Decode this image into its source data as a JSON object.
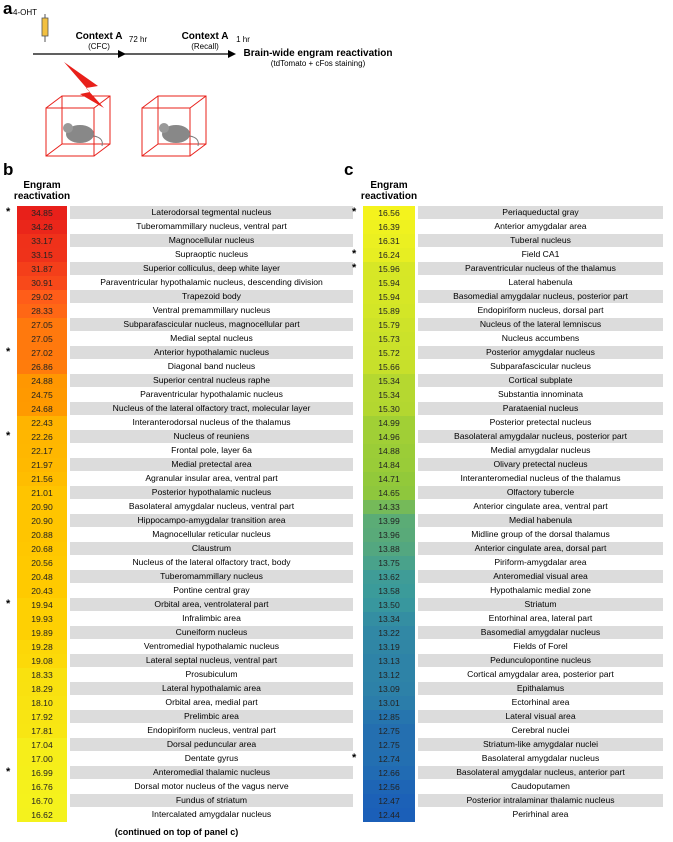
{
  "panel_a": {
    "label": "a",
    "drug": "4-OHT",
    "step1_title": "Context A",
    "step1_sub": "(CFC)",
    "interval1": "72 hr",
    "step2_title": "Context A",
    "step2_sub": "(Recall)",
    "interval2": "1 hr",
    "result_title": "Brain-wide engram reactivation",
    "result_sub": "(tdTomato + cFos staining)"
  },
  "panel_b": {
    "label": "b",
    "column_header": "Engram reactivation",
    "footnote": "(continued on top of panel c)",
    "rows": [
      {
        "star": "*",
        "value": "34.85",
        "name": "Laterodorsal tegmental nucleus"
      },
      {
        "value": "34.26",
        "name": "Tuberomammillary nucleus, ventral part"
      },
      {
        "value": "33.17",
        "name": "Magnocellular nucleus"
      },
      {
        "value": "33.15",
        "name": "Supraoptic nucleus"
      },
      {
        "value": "31.87",
        "name": "Superior colliculus, deep white layer"
      },
      {
        "value": "30.91",
        "name": "Paraventricular hypothalamic nucleus, descending division"
      },
      {
        "value": "29.02",
        "name": "Trapezoid body"
      },
      {
        "value": "28.33",
        "name": "Ventral premammillary nucleus"
      },
      {
        "value": "27.05",
        "name": "Subparafascicular nucleus, magnocellular part"
      },
      {
        "value": "27.05",
        "name": "Medial septal nucleus"
      },
      {
        "star": "*",
        "value": "27.02",
        "name": "Anterior hypothalamic nucleus"
      },
      {
        "value": "26.86",
        "name": "Diagonal band nucleus"
      },
      {
        "value": "24.88",
        "name": "Superior central nucleus raphe"
      },
      {
        "value": "24.75",
        "name": "Paraventricular hypothalamic nucleus"
      },
      {
        "value": "24.68",
        "name": "Nucleus of the lateral olfactory tract, molecular layer"
      },
      {
        "value": "22.43",
        "name": "Interanterodorsal nucleus of the thalamus"
      },
      {
        "star": "*",
        "value": "22.26",
        "name": "Nucleus of reuniens"
      },
      {
        "value": "22.17",
        "name": "Frontal pole, layer 6a"
      },
      {
        "value": "21.97",
        "name": "Medial pretectal area"
      },
      {
        "value": "21.56",
        "name": "Agranular insular area, ventral part"
      },
      {
        "value": "21.01",
        "name": "Posterior hypothalamic nucleus"
      },
      {
        "value": "20.90",
        "name": "Basolateral amygdalar nucleus, ventral part"
      },
      {
        "value": "20.90",
        "name": "Hippocampo-amygdalar transition area"
      },
      {
        "value": "20.88",
        "name": "Magnocellular reticular nucleus"
      },
      {
        "value": "20.68",
        "name": "Claustrum"
      },
      {
        "value": "20.56",
        "name": "Nucleus of the lateral olfactory tract, body"
      },
      {
        "value": "20.48",
        "name": "Tuberomammillary nucleus"
      },
      {
        "value": "20.43",
        "name": "Pontine central gray"
      },
      {
        "star": "*",
        "value": "19.94",
        "name": "Orbital area, ventrolateral part"
      },
      {
        "value": "19.93",
        "name": "Infralimbic area"
      },
      {
        "value": "19.89",
        "name": "Cuneiform nucleus"
      },
      {
        "value": "19.28",
        "name": "Ventromedial hypothalamic nucleus"
      },
      {
        "value": "19.08",
        "name": "Lateral septal nucleus, ventral part"
      },
      {
        "value": "18.33",
        "name": "Prosubiculum"
      },
      {
        "value": "18.29",
        "name": "Lateral hypothalamic area"
      },
      {
        "value": "18.10",
        "name": "Orbital area, medial part"
      },
      {
        "value": "17.92",
        "name": "Prelimbic area"
      },
      {
        "value": "17.81",
        "name": "Endopiriform nucleus, ventral part"
      },
      {
        "value": "17.04",
        "name": "Dorsal peduncular area"
      },
      {
        "value": "17.00",
        "name": "Dentate gyrus"
      },
      {
        "star": "*",
        "value": "16.99",
        "name": "Anteromedial thalamic nucleus"
      },
      {
        "value": "16.76",
        "name": "Dorsal motor nucleus of the vagus nerve"
      },
      {
        "value": "16.70",
        "name": "Fundus of striatum"
      },
      {
        "value": "16.62",
        "name": "Intercalated amygdalar nucleus"
      }
    ]
  },
  "panel_c": {
    "label": "c",
    "column_header": "Engram reactivation",
    "rows": [
      {
        "star": "*",
        "value": "16.56",
        "name": "Periaqueductal gray"
      },
      {
        "value": "16.39",
        "name": "Anterior amygdalar area"
      },
      {
        "value": "16.31",
        "name": "Tuberal nucleus"
      },
      {
        "star": "*",
        "value": "16.24",
        "name": "Field CA1"
      },
      {
        "star": "*",
        "value": "15.96",
        "name": "Paraventricular nucleus of the thalamus"
      },
      {
        "value": "15.94",
        "name": "Lateral habenula"
      },
      {
        "value": "15.94",
        "name": "Basomedial amygdalar nucleus, posterior part"
      },
      {
        "value": "15.89",
        "name": "Endopiriform nucleus, dorsal part"
      },
      {
        "value": "15.79",
        "name": "Nucleus of the lateral lemniscus"
      },
      {
        "value": "15.73",
        "name": "Nucleus accumbens"
      },
      {
        "value": "15.72",
        "name": "Posterior amygdalar nucleus"
      },
      {
        "value": "15.66",
        "name": "Subparafascicular nucleus"
      },
      {
        "value": "15.34",
        "name": "Cortical subplate"
      },
      {
        "value": "15.34",
        "name": "Substantia innominata"
      },
      {
        "value": "15.30",
        "name": "Parataenial nucleus"
      },
      {
        "value": "14.99",
        "name": "Posterior pretectal nucleus"
      },
      {
        "value": "14.96",
        "name": "Basolateral amygdalar nucleus, posterior part"
      },
      {
        "value": "14.88",
        "name": "Medial amygdalar nucleus"
      },
      {
        "value": "14.84",
        "name": "Olivary pretectal nucleus"
      },
      {
        "value": "14.71",
        "name": "Interanteromedial nucleus of the thalamus"
      },
      {
        "value": "14.65",
        "name": "Olfactory tubercle"
      },
      {
        "value": "14.33",
        "name": "Anterior cingulate area, ventral part"
      },
      {
        "value": "13.99",
        "name": "Medial habenula"
      },
      {
        "value": "13.96",
        "name": "Midline group of the dorsal thalamus"
      },
      {
        "value": "13.88",
        "name": "Anterior cingulate area, dorsal part"
      },
      {
        "value": "13.75",
        "name": "Piriform-amygdalar area"
      },
      {
        "value": "13.62",
        "name": "Anteromedial visual area"
      },
      {
        "value": "13.58",
        "name": "Hypothalamic medial zone"
      },
      {
        "value": "13.50",
        "name": "Striatum"
      },
      {
        "value": "13.34",
        "name": "Entorhinal area, lateral part"
      },
      {
        "value": "13.22",
        "name": "Basomedial amygdalar nucleus"
      },
      {
        "value": "13.19",
        "name": "Fields of Forel"
      },
      {
        "value": "13.13",
        "name": "Pedunculopontine nucleus"
      },
      {
        "value": "13.12",
        "name": "Cortical amygdalar area, posterior part"
      },
      {
        "value": "13.09",
        "name": "Epithalamus"
      },
      {
        "value": "13.01",
        "name": "Ectorhinal area"
      },
      {
        "value": "12.85",
        "name": "Lateral visual area"
      },
      {
        "value": "12.75",
        "name": "Cerebral nuclei"
      },
      {
        "value": "12.75",
        "name": "Striatum-like amygdalar nuclei"
      },
      {
        "star": "*",
        "value": "12.74",
        "name": "Basolateral amygdalar nucleus"
      },
      {
        "value": "12.66",
        "name": "Basolateral amygdalar nucleus, anterior part"
      },
      {
        "value": "12.56",
        "name": "Caudoputamen"
      },
      {
        "value": "12.47",
        "name": "Posterior intralaminar thalamic nucleus"
      },
      {
        "value": "12.44",
        "name": "Perirhinal area"
      }
    ]
  }
}
